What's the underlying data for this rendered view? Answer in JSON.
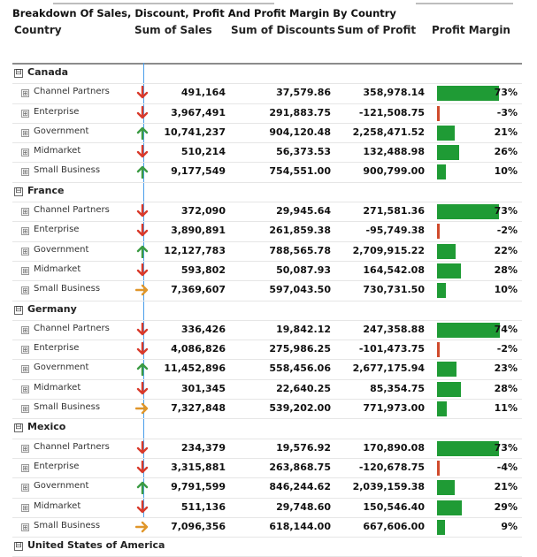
{
  "report": {
    "title": "Breakdown Of Sales, Discount, Profit And Profit Margin By Country"
  },
  "columns": [
    "Country",
    "Sum of Sales",
    "Sum of Discounts",
    "Sum of Profit",
    "Profit Margin"
  ],
  "icons": {
    "expand_symbol": "⊞",
    "collapse_symbol": "⊟",
    "down": "red-down-arrow",
    "up": "green-up-arrow",
    "right": "orange-right-arrow"
  },
  "colors": {
    "positive_bar": "#1f9b35",
    "negative_bar": "#d04b2c",
    "down": "#d93a2b",
    "up": "#3c9b44",
    "right": "#e0962a",
    "column_divider": "#4a9eea"
  },
  "groups": [
    {
      "country": "Canada",
      "rows": [
        {
          "segment": "Channel Partners",
          "trend": "down",
          "sales": "491,164",
          "discount": "37,579.86",
          "profit": "358,978.14",
          "margin": "73%",
          "margin_value": 73
        },
        {
          "segment": "Enterprise",
          "trend": "down",
          "sales": "3,967,491",
          "discount": "291,883.75",
          "profit": "-121,508.75",
          "margin": "-3%",
          "margin_value": -3
        },
        {
          "segment": "Government",
          "trend": "up",
          "sales": "10,741,237",
          "discount": "904,120.48",
          "profit": "2,258,471.52",
          "margin": "21%",
          "margin_value": 21
        },
        {
          "segment": "Midmarket",
          "trend": "down",
          "sales": "510,214",
          "discount": "56,373.53",
          "profit": "132,488.98",
          "margin": "26%",
          "margin_value": 26
        },
        {
          "segment": "Small Business",
          "trend": "up",
          "sales": "9,177,549",
          "discount": "754,551.00",
          "profit": "900,799.00",
          "margin": "10%",
          "margin_value": 10
        }
      ]
    },
    {
      "country": "France",
      "rows": [
        {
          "segment": "Channel Partners",
          "trend": "down",
          "sales": "372,090",
          "discount": "29,945.64",
          "profit": "271,581.36",
          "margin": "73%",
          "margin_value": 73
        },
        {
          "segment": "Enterprise",
          "trend": "down",
          "sales": "3,890,891",
          "discount": "261,859.38",
          "profit": "-95,749.38",
          "margin": "-2%",
          "margin_value": -2
        },
        {
          "segment": "Government",
          "trend": "up",
          "sales": "12,127,783",
          "discount": "788,565.78",
          "profit": "2,709,915.22",
          "margin": "22%",
          "margin_value": 22
        },
        {
          "segment": "Midmarket",
          "trend": "down",
          "sales": "593,802",
          "discount": "50,087.93",
          "profit": "164,542.08",
          "margin": "28%",
          "margin_value": 28
        },
        {
          "segment": "Small Business",
          "trend": "right",
          "sales": "7,369,607",
          "discount": "597,043.50",
          "profit": "730,731.50",
          "margin": "10%",
          "margin_value": 10
        }
      ]
    },
    {
      "country": "Germany",
      "rows": [
        {
          "segment": "Channel Partners",
          "trend": "down",
          "sales": "336,426",
          "discount": "19,842.12",
          "profit": "247,358.88",
          "margin": "74%",
          "margin_value": 74
        },
        {
          "segment": "Enterprise",
          "trend": "down",
          "sales": "4,086,826",
          "discount": "275,986.25",
          "profit": "-101,473.75",
          "margin": "-2%",
          "margin_value": -2
        },
        {
          "segment": "Government",
          "trend": "up",
          "sales": "11,452,896",
          "discount": "558,456.06",
          "profit": "2,677,175.94",
          "margin": "23%",
          "margin_value": 23
        },
        {
          "segment": "Midmarket",
          "trend": "down",
          "sales": "301,345",
          "discount": "22,640.25",
          "profit": "85,354.75",
          "margin": "28%",
          "margin_value": 28
        },
        {
          "segment": "Small Business",
          "trend": "right",
          "sales": "7,327,848",
          "discount": "539,202.00",
          "profit": "771,973.00",
          "margin": "11%",
          "margin_value": 11
        }
      ]
    },
    {
      "country": "Mexico",
      "rows": [
        {
          "segment": "Channel Partners",
          "trend": "down",
          "sales": "234,379",
          "discount": "19,576.92",
          "profit": "170,890.08",
          "margin": "73%",
          "margin_value": 73
        },
        {
          "segment": "Enterprise",
          "trend": "down",
          "sales": "3,315,881",
          "discount": "263,868.75",
          "profit": "-120,678.75",
          "margin": "-4%",
          "margin_value": -4
        },
        {
          "segment": "Government",
          "trend": "up",
          "sales": "9,791,599",
          "discount": "846,244.62",
          "profit": "2,039,159.38",
          "margin": "21%",
          "margin_value": 21
        },
        {
          "segment": "Midmarket",
          "trend": "down",
          "sales": "511,136",
          "discount": "29,748.60",
          "profit": "150,546.40",
          "margin": "29%",
          "margin_value": 29
        },
        {
          "segment": "Small Business",
          "trend": "right",
          "sales": "7,096,356",
          "discount": "618,144.00",
          "profit": "667,606.00",
          "margin": "9%",
          "margin_value": 9
        }
      ]
    },
    {
      "country": "United States of America",
      "rows": []
    }
  ]
}
